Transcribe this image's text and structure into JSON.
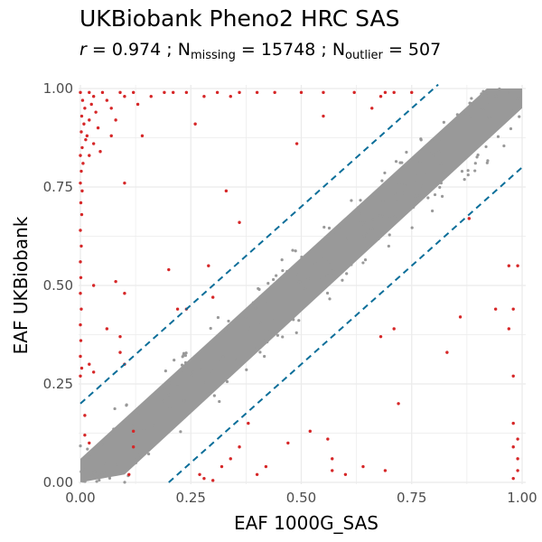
{
  "chart_data": {
    "type": "scatter",
    "title": "UKBiobank Pheno2 HRC SAS",
    "subtitle": {
      "r_label": "r",
      "r_value": "0.974",
      "sep": ";",
      "missing_label": "N",
      "missing_sub": "missing",
      "missing_value": "15748",
      "outlier_label": "N",
      "outlier_sub": "outlier",
      "outlier_value": "507"
    },
    "xlabel": "EAF 1000G_SAS",
    "ylabel": "EAF UKBiobank",
    "xlim": [
      0,
      1
    ],
    "ylim": [
      0,
      1
    ],
    "x_ticks": [
      "0.00",
      "0.25",
      "0.50",
      "0.75",
      "1.00"
    ],
    "y_ticks": [
      "0.00",
      "0.25",
      "0.50",
      "0.75",
      "1.00"
    ],
    "grid": true,
    "colors": {
      "inlier": "#999999",
      "outlier": "#d62728",
      "threshold_line": "#0b6e99",
      "grid": "#ebebeb"
    },
    "threshold_lines": [
      {
        "intercept": 0.2,
        "slope": 1
      },
      {
        "intercept": -0.2,
        "slope": 1
      }
    ],
    "outliers": [
      [
        0.0,
        0.99
      ],
      [
        0.005,
        0.97
      ],
      [
        0.01,
        0.95
      ],
      [
        0.003,
        0.93
      ],
      [
        0.008,
        0.91
      ],
      [
        0.002,
        0.89
      ],
      [
        0.012,
        0.87
      ],
      [
        0.004,
        0.85
      ],
      [
        0.0,
        0.83
      ],
      [
        0.006,
        0.81
      ],
      [
        0.002,
        0.79
      ],
      [
        0.0,
        0.76
      ],
      [
        0.004,
        0.74
      ],
      [
        0.001,
        0.71
      ],
      [
        0.003,
        0.68
      ],
      [
        0.0,
        0.64
      ],
      [
        0.002,
        0.6
      ],
      [
        0.0,
        0.56
      ],
      [
        0.001,
        0.52
      ],
      [
        0.0,
        0.48
      ],
      [
        0.002,
        0.44
      ],
      [
        0.0,
        0.4
      ],
      [
        0.001,
        0.36
      ],
      [
        0.0,
        0.32
      ],
      [
        0.003,
        0.29
      ],
      [
        0.0,
        0.27
      ],
      [
        0.02,
        0.99
      ],
      [
        0.03,
        0.98
      ],
      [
        0.025,
        0.96
      ],
      [
        0.035,
        0.94
      ],
      [
        0.02,
        0.92
      ],
      [
        0.04,
        0.9
      ],
      [
        0.015,
        0.88
      ],
      [
        0.03,
        0.86
      ],
      [
        0.045,
        0.84
      ],
      [
        0.02,
        0.83
      ],
      [
        0.05,
        0.99
      ],
      [
        0.06,
        0.97
      ],
      [
        0.07,
        0.95
      ],
      [
        0.08,
        0.92
      ],
      [
        0.07,
        0.88
      ],
      [
        0.09,
        0.99
      ],
      [
        0.1,
        0.98
      ],
      [
        0.12,
        0.99
      ],
      [
        0.13,
        0.96
      ],
      [
        0.14,
        0.88
      ],
      [
        0.16,
        0.98
      ],
      [
        0.19,
        0.99
      ],
      [
        0.21,
        0.99
      ],
      [
        0.24,
        0.99
      ],
      [
        0.26,
        0.91
      ],
      [
        0.28,
        0.98
      ],
      [
        0.31,
        0.99
      ],
      [
        0.34,
        0.98
      ],
      [
        0.36,
        0.99
      ],
      [
        0.4,
        0.99
      ],
      [
        0.44,
        0.99
      ],
      [
        0.5,
        0.99
      ],
      [
        0.55,
        0.99
      ],
      [
        0.62,
        0.99
      ],
      [
        0.66,
        0.95
      ],
      [
        0.68,
        0.98
      ],
      [
        0.69,
        0.99
      ],
      [
        0.71,
        0.99
      ],
      [
        0.75,
        0.99
      ],
      [
        0.49,
        0.86
      ],
      [
        0.55,
        0.93
      ],
      [
        0.1,
        0.76
      ],
      [
        0.33,
        0.74
      ],
      [
        0.36,
        0.66
      ],
      [
        0.06,
        0.39
      ],
      [
        0.09,
        0.37
      ],
      [
        0.09,
        0.33
      ],
      [
        0.1,
        0.3
      ],
      [
        0.1,
        0.48
      ],
      [
        0.08,
        0.51
      ],
      [
        0.03,
        0.5
      ],
      [
        0.02,
        0.3
      ],
      [
        0.03,
        0.28
      ],
      [
        0.01,
        0.17
      ],
      [
        0.01,
        0.12
      ],
      [
        0.02,
        0.1
      ],
      [
        0.12,
        0.13
      ],
      [
        0.12,
        0.09
      ],
      [
        0.11,
        0.02
      ],
      [
        0.27,
        0.02
      ],
      [
        0.28,
        0.01
      ],
      [
        0.3,
        0.005
      ],
      [
        0.32,
        0.04
      ],
      [
        0.34,
        0.06
      ],
      [
        0.36,
        0.09
      ],
      [
        0.38,
        0.15
      ],
      [
        0.4,
        0.02
      ],
      [
        0.42,
        0.04
      ],
      [
        0.47,
        0.1
      ],
      [
        0.52,
        0.13
      ],
      [
        0.56,
        0.11
      ],
      [
        0.57,
        0.06
      ],
      [
        0.57,
        0.03
      ],
      [
        0.6,
        0.02
      ],
      [
        0.64,
        0.04
      ],
      [
        0.69,
        0.03
      ],
      [
        0.72,
        0.2
      ],
      [
        0.71,
        0.39
      ],
      [
        0.68,
        0.37
      ],
      [
        0.83,
        0.33
      ],
      [
        0.86,
        0.42
      ],
      [
        0.88,
        0.67
      ],
      [
        0.94,
        0.44
      ],
      [
        0.97,
        0.55
      ],
      [
        0.98,
        0.27
      ],
      [
        0.98,
        0.15
      ],
      [
        0.99,
        0.11
      ],
      [
        0.98,
        0.09
      ],
      [
        0.99,
        0.06
      ],
      [
        0.99,
        0.03
      ],
      [
        0.98,
        0.01
      ],
      [
        0.97,
        0.39
      ],
      [
        0.98,
        0.44
      ],
      [
        0.99,
        0.55
      ],
      [
        0.2,
        0.54
      ],
      [
        0.22,
        0.44
      ],
      [
        0.24,
        0.44
      ],
      [
        0.29,
        0.55
      ],
      [
        0.3,
        0.47
      ]
    ]
  }
}
